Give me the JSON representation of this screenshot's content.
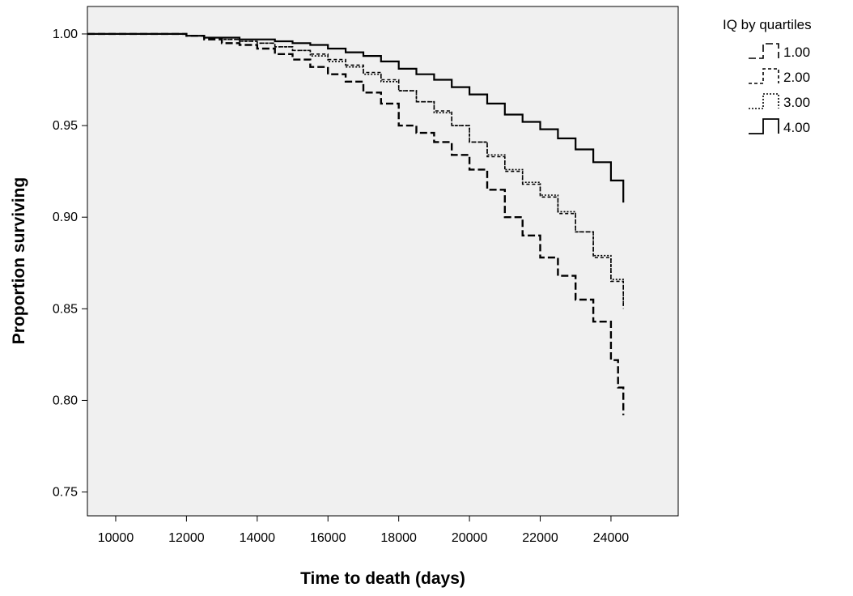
{
  "chart_data": {
    "type": "line",
    "subtype": "kaplan-meier step survival curves",
    "title": "",
    "xlabel": "Time to death (days)",
    "ylabel": "Proportion surviving",
    "xlim": [
      9200,
      25900
    ],
    "ylim": [
      0.737,
      1.015
    ],
    "x_ticks": [
      10000,
      12000,
      14000,
      16000,
      18000,
      20000,
      22000,
      24000
    ],
    "x_tick_labels": [
      "10000",
      "12000",
      "14000",
      "16000",
      "18000",
      "20000",
      "22000",
      "24000"
    ],
    "y_ticks": [
      0.75,
      0.8,
      0.85,
      0.9,
      0.95,
      1.0
    ],
    "y_tick_labels": [
      "0.75",
      "0.80",
      "0.85",
      "0.90",
      "0.95",
      "1.00"
    ],
    "grid": false,
    "plot_background": "#f0f0f0",
    "legend": {
      "title": "IQ by quartiles",
      "position": "top-right, outside plot"
    },
    "series": [
      {
        "name": "1.00",
        "line_style": "long-dash",
        "color": "#000000",
        "points": [
          [
            9200,
            1.0
          ],
          [
            11500,
            1.0
          ],
          [
            12000,
            0.999
          ],
          [
            12500,
            0.997
          ],
          [
            13000,
            0.995
          ],
          [
            13500,
            0.994
          ],
          [
            14000,
            0.992
          ],
          [
            14500,
            0.989
          ],
          [
            15000,
            0.986
          ],
          [
            15500,
            0.982
          ],
          [
            16000,
            0.978
          ],
          [
            16500,
            0.974
          ],
          [
            17000,
            0.968
          ],
          [
            17500,
            0.962
          ],
          [
            18000,
            0.95
          ],
          [
            18500,
            0.946
          ],
          [
            19000,
            0.941
          ],
          [
            19500,
            0.934
          ],
          [
            20000,
            0.926
          ],
          [
            20500,
            0.915
          ],
          [
            21000,
            0.9
          ],
          [
            21500,
            0.89
          ],
          [
            22000,
            0.878
          ],
          [
            22500,
            0.868
          ],
          [
            23000,
            0.855
          ],
          [
            23500,
            0.843
          ],
          [
            24000,
            0.822
          ],
          [
            24200,
            0.807
          ],
          [
            24350,
            0.792
          ]
        ]
      },
      {
        "name": "2.00",
        "line_style": "short-dash",
        "color": "#000000",
        "points": [
          [
            9200,
            1.0
          ],
          [
            11500,
            1.0
          ],
          [
            12000,
            0.999
          ],
          [
            12500,
            0.998
          ],
          [
            13000,
            0.997
          ],
          [
            13500,
            0.996
          ],
          [
            14000,
            0.995
          ],
          [
            14500,
            0.993
          ],
          [
            15000,
            0.991
          ],
          [
            15500,
            0.989
          ],
          [
            16000,
            0.986
          ],
          [
            16500,
            0.983
          ],
          [
            17000,
            0.979
          ],
          [
            17500,
            0.975
          ],
          [
            18000,
            0.969
          ],
          [
            18500,
            0.963
          ],
          [
            19000,
            0.958
          ],
          [
            19500,
            0.95
          ],
          [
            20000,
            0.941
          ],
          [
            20500,
            0.933
          ],
          [
            21000,
            0.925
          ],
          [
            21500,
            0.918
          ],
          [
            22000,
            0.911
          ],
          [
            22500,
            0.902
          ],
          [
            23000,
            0.892
          ],
          [
            23500,
            0.878
          ],
          [
            24000,
            0.865
          ],
          [
            24350,
            0.85
          ]
        ]
      },
      {
        "name": "3.00",
        "line_style": "dotted",
        "color": "#000000",
        "points": [
          [
            9200,
            1.0
          ],
          [
            11500,
            1.0
          ],
          [
            12000,
            0.999
          ],
          [
            12500,
            0.998
          ],
          [
            13000,
            0.997
          ],
          [
            13500,
            0.996
          ],
          [
            14000,
            0.995
          ],
          [
            14500,
            0.993
          ],
          [
            15000,
            0.991
          ],
          [
            15500,
            0.988
          ],
          [
            16000,
            0.985
          ],
          [
            16500,
            0.982
          ],
          [
            17000,
            0.978
          ],
          [
            17500,
            0.974
          ],
          [
            18000,
            0.969
          ],
          [
            18500,
            0.963
          ],
          [
            19000,
            0.957
          ],
          [
            19500,
            0.95
          ],
          [
            20000,
            0.941
          ],
          [
            20500,
            0.934
          ],
          [
            21000,
            0.926
          ],
          [
            21500,
            0.919
          ],
          [
            22000,
            0.912
          ],
          [
            22500,
            0.903
          ],
          [
            23000,
            0.892
          ],
          [
            23500,
            0.879
          ],
          [
            24000,
            0.866
          ],
          [
            24350,
            0.851
          ]
        ]
      },
      {
        "name": "4.00",
        "line_style": "solid",
        "color": "#000000",
        "points": [
          [
            9200,
            1.0
          ],
          [
            11500,
            1.0
          ],
          [
            12000,
            0.999
          ],
          [
            12500,
            0.998
          ],
          [
            13000,
            0.998
          ],
          [
            13500,
            0.997
          ],
          [
            14000,
            0.997
          ],
          [
            14500,
            0.996
          ],
          [
            15000,
            0.995
          ],
          [
            15500,
            0.994
          ],
          [
            16000,
            0.992
          ],
          [
            16500,
            0.99
          ],
          [
            17000,
            0.988
          ],
          [
            17500,
            0.985
          ],
          [
            18000,
            0.981
          ],
          [
            18500,
            0.978
          ],
          [
            19000,
            0.975
          ],
          [
            19500,
            0.971
          ],
          [
            20000,
            0.967
          ],
          [
            20500,
            0.962
          ],
          [
            21000,
            0.956
          ],
          [
            21500,
            0.952
          ],
          [
            22000,
            0.948
          ],
          [
            22500,
            0.943
          ],
          [
            23000,
            0.937
          ],
          [
            23500,
            0.93
          ],
          [
            24000,
            0.92
          ],
          [
            24350,
            0.908
          ]
        ]
      }
    ]
  }
}
